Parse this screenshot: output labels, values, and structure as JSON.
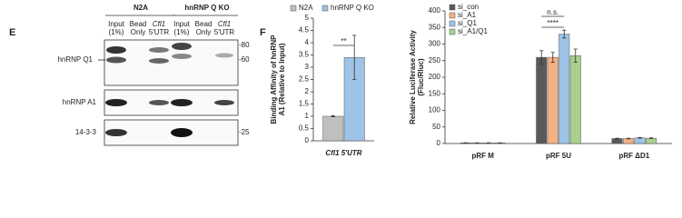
{
  "blot": {
    "panel_label": "E",
    "groups": [
      "N2A",
      "hnRNP Q KO"
    ],
    "lanes": [
      [
        [
          "Input",
          "(1%)"
        ],
        [
          "Bead",
          "Only"
        ],
        [
          "Cfl1",
          "5'UTR"
        ]
      ],
      [
        [
          "Input",
          "(1%)"
        ],
        [
          "Bead",
          "Only"
        ],
        [
          "Cfl1",
          "5'UTR"
        ]
      ]
    ],
    "rows": [
      "hnRNP Q1",
      "hnRNP A1",
      "14-3-3"
    ],
    "markers": [
      "-80",
      "-60",
      "-25"
    ]
  },
  "chart_data": [
    {
      "type": "bar",
      "panel_label": "F",
      "y_label": [
        "Binding Affinity of hnRNP",
        "A1 (Relative to Input)"
      ],
      "categories": [
        "Cfl1 5'UTR"
      ],
      "series": [
        {
          "name": "N2A",
          "color": "#bfbfbf",
          "values": [
            1
          ],
          "errors": [
            0.02
          ]
        },
        {
          "name": "hnRNP Q KO",
          "color": "#9dc3e6",
          "values": [
            3.4
          ],
          "errors": [
            0.9
          ]
        }
      ],
      "ylim": [
        0,
        5
      ],
      "yticks": [
        0,
        0.5,
        1,
        1.5,
        2,
        2.5,
        3,
        3.5,
        4,
        4.5,
        5
      ],
      "annotations": [
        "**"
      ]
    },
    {
      "type": "bar",
      "y_label": [
        "Relative Luciferase Activity",
        "(Fluc/Rluc)"
      ],
      "categories": [
        "pRF M",
        "pRF 5U",
        "pRF ΔD1"
      ],
      "series": [
        {
          "name": "si_con",
          "color": "#595959",
          "values": [
            2,
            260,
            15
          ],
          "errors": [
            0.5,
            20,
            1
          ]
        },
        {
          "name": "si_A1",
          "color": "#f4b183",
          "values": [
            2,
            260,
            15
          ],
          "errors": [
            0.5,
            15,
            1
          ]
        },
        {
          "name": "si_Q1",
          "color": "#9dc3e6",
          "values": [
            2,
            330,
            17
          ],
          "errors": [
            0.5,
            12,
            1
          ]
        },
        {
          "name": "si_A1/Q1",
          "color": "#a9d18e",
          "values": [
            2,
            265,
            16
          ],
          "errors": [
            0.5,
            20,
            1
          ]
        }
      ],
      "ylim": [
        0,
        400
      ],
      "yticks": [
        0,
        50,
        100,
        150,
        200,
        250,
        300,
        350,
        400
      ],
      "annotations": [
        "n.s.",
        "****"
      ]
    }
  ]
}
